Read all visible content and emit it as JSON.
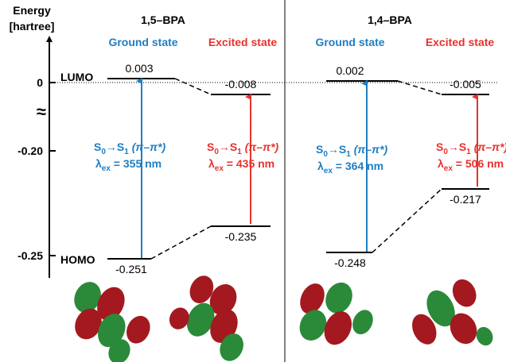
{
  "axis": {
    "title": "Energy",
    "unit": "[hartree]",
    "ticks": [
      "0",
      "-0.20",
      "-0.25"
    ]
  },
  "level_labels": {
    "lumo": "LUMO",
    "homo": "HOMO"
  },
  "panels": [
    {
      "title": "1,5–BPA",
      "ground": {
        "label": "Ground state",
        "lumo": "0.003",
        "homo": "-0.251",
        "transition": {
          "s": "S",
          "from": "0",
          "arrow": "→S",
          "to": "1",
          "type": " (π–π*)",
          "lambda": "λ",
          "sub": "ex",
          "value": " = 355 nm"
        }
      },
      "excited": {
        "label": "Excited state",
        "lumo": "-0.008",
        "homo": "-0.235",
        "transition": {
          "s": "S",
          "from": "0",
          "arrow": "→S",
          "to": "1",
          "type": " (π–π*)",
          "lambda": "λ",
          "sub": "ex",
          "value": " = 435 nm"
        }
      }
    },
    {
      "title": "1,4–BPA",
      "ground": {
        "label": "Ground state",
        "lumo": "0.002",
        "homo": "-0.248",
        "transition": {
          "s": "S",
          "from": "0",
          "arrow": "→S",
          "to": "1",
          "type": " (π–π*)",
          "lambda": "λ",
          "sub": "ex",
          "value": " = 364 nm"
        }
      },
      "excited": {
        "label": "Excited state",
        "lumo": "-0.005",
        "homo": "-0.217",
        "transition": {
          "s": "S",
          "from": "0",
          "arrow": "→S",
          "to": "1",
          "type": " (π–π*)",
          "lambda": "λ",
          "sub": "ex",
          "value": " = 506 nm"
        }
      }
    }
  ]
}
